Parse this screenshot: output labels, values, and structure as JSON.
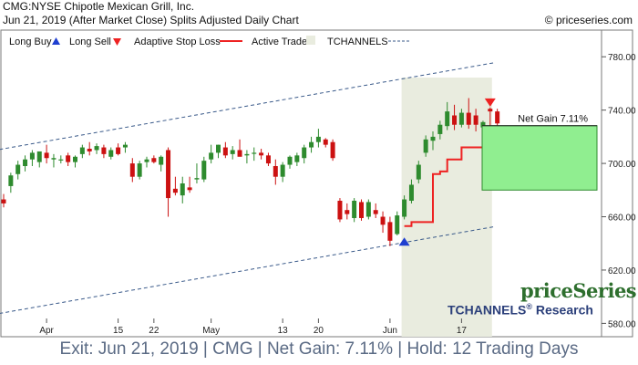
{
  "header": {
    "line1": "CMG:NYSE Chipotle Mexican Grill, Inc.",
    "line2": "Jun 21, 2019 (After Market Close)  Splits Adjusted Daily Chart",
    "copyright": "© priceseries.com"
  },
  "legend": {
    "long_buy": "Long Buy",
    "long_sell": "Long Sell",
    "adaptive_stop": "Adaptive Stop Loss",
    "active_trade": "Active Trade",
    "tchannels": "TCHANNELS"
  },
  "branding": {
    "name": "priceSeries",
    "research_prefix": "TCHANNELS",
    "research_mark": "®",
    "research_suffix": " Research"
  },
  "footer": "Exit: Jun 21, 2019 | CMG | Net Gain: 7.11% | Hold: 12 Trading Days",
  "colors": {
    "up": "#2e8b2e",
    "down": "#cc1111",
    "stop": "#ee2222",
    "channel": "#3a5a8a",
    "active_shade": "#e9ecdf",
    "gain_box": "#90ee90",
    "buy_arrow": "#1f3fd0",
    "sell_arrow": "#ee2222"
  },
  "chart_data": {
    "type": "candlestick",
    "ylim": [
      570,
      800
    ],
    "y_ticks": [
      580,
      620,
      660,
      700,
      740,
      780
    ],
    "y_tick_labels": [
      "580.00",
      "620.00",
      "660.00",
      "700.00",
      "740.00",
      "780.00"
    ],
    "x_tick_labels": [
      {
        "label": "Apr",
        "index": 6
      },
      {
        "label": "15",
        "index": 16
      },
      {
        "label": "22",
        "index": 21
      },
      {
        "label": "May",
        "index": 29
      },
      {
        "label": "13",
        "index": 39
      },
      {
        "label": "20",
        "index": 44
      },
      {
        "label": "Jun",
        "index": 54
      },
      {
        "label": "17",
        "index": 64
      }
    ],
    "candles": [
      {
        "o": 673,
        "h": 677,
        "l": 667,
        "c": 670
      },
      {
        "o": 683,
        "h": 693,
        "l": 678,
        "c": 691
      },
      {
        "o": 692,
        "h": 702,
        "l": 688,
        "c": 699
      },
      {
        "o": 698,
        "h": 706,
        "l": 694,
        "c": 703
      },
      {
        "o": 703,
        "h": 710,
        "l": 698,
        "c": 708
      },
      {
        "o": 701,
        "h": 707,
        "l": 697,
        "c": 709
      },
      {
        "o": 708,
        "h": 714,
        "l": 700,
        "c": 704
      },
      {
        "o": 703,
        "h": 707,
        "l": 697,
        "c": 704
      },
      {
        "o": 703,
        "h": 706,
        "l": 700,
        "c": 703
      },
      {
        "o": 706,
        "h": 708,
        "l": 698,
        "c": 701
      },
      {
        "o": 701,
        "h": 706,
        "l": 697,
        "c": 705
      },
      {
        "o": 707,
        "h": 714,
        "l": 704,
        "c": 712
      },
      {
        "o": 711,
        "h": 716,
        "l": 706,
        "c": 709
      },
      {
        "o": 710,
        "h": 715,
        "l": 707,
        "c": 713
      },
      {
        "o": 712,
        "h": 714,
        "l": 704,
        "c": 707
      },
      {
        "o": 705,
        "h": 712,
        "l": 703,
        "c": 710
      },
      {
        "o": 712,
        "h": 715,
        "l": 706,
        "c": 707
      },
      {
        "o": 712,
        "h": 716,
        "l": 708,
        "c": 714
      },
      {
        "o": 700,
        "h": 704,
        "l": 686,
        "c": 690
      },
      {
        "o": 690,
        "h": 702,
        "l": 688,
        "c": 700
      },
      {
        "o": 701,
        "h": 705,
        "l": 697,
        "c": 703
      },
      {
        "o": 704,
        "h": 706,
        "l": 700,
        "c": 701
      },
      {
        "o": 699,
        "h": 706,
        "l": 694,
        "c": 705
      },
      {
        "o": 710,
        "h": 712,
        "l": 660,
        "c": 674
      },
      {
        "o": 681,
        "h": 690,
        "l": 676,
        "c": 678
      },
      {
        "o": 676,
        "h": 690,
        "l": 670,
        "c": 685
      },
      {
        "o": 682,
        "h": 690,
        "l": 678,
        "c": 680
      },
      {
        "o": 688,
        "h": 700,
        "l": 685,
        "c": 689
      },
      {
        "o": 688,
        "h": 705,
        "l": 686,
        "c": 702
      },
      {
        "o": 703,
        "h": 714,
        "l": 700,
        "c": 708
      },
      {
        "o": 708,
        "h": 714,
        "l": 704,
        "c": 714
      },
      {
        "o": 712,
        "h": 716,
        "l": 704,
        "c": 706
      },
      {
        "o": 707,
        "h": 713,
        "l": 703,
        "c": 710
      },
      {
        "o": 710,
        "h": 718,
        "l": 706,
        "c": 705
      },
      {
        "o": 706,
        "h": 710,
        "l": 700,
        "c": 707
      },
      {
        "o": 708,
        "h": 712,
        "l": 702,
        "c": 708
      },
      {
        "o": 708,
        "h": 711,
        "l": 703,
        "c": 706
      },
      {
        "o": 706,
        "h": 708,
        "l": 698,
        "c": 700
      },
      {
        "o": 698,
        "h": 703,
        "l": 684,
        "c": 690
      },
      {
        "o": 690,
        "h": 701,
        "l": 686,
        "c": 699
      },
      {
        "o": 699,
        "h": 706,
        "l": 696,
        "c": 705
      },
      {
        "o": 701,
        "h": 708,
        "l": 698,
        "c": 706
      },
      {
        "o": 704,
        "h": 714,
        "l": 700,
        "c": 712
      },
      {
        "o": 712,
        "h": 720,
        "l": 708,
        "c": 716
      },
      {
        "o": 716,
        "h": 726,
        "l": 712,
        "c": 720
      },
      {
        "o": 718,
        "h": 719,
        "l": 712,
        "c": 714
      },
      {
        "o": 716,
        "h": 718,
        "l": 702,
        "c": 704
      },
      {
        "o": 672,
        "h": 674,
        "l": 656,
        "c": 658
      },
      {
        "o": 665,
        "h": 670,
        "l": 658,
        "c": 662
      },
      {
        "o": 659,
        "h": 674,
        "l": 656,
        "c": 672
      },
      {
        "o": 671,
        "h": 673,
        "l": 657,
        "c": 659
      },
      {
        "o": 660,
        "h": 673,
        "l": 658,
        "c": 671
      },
      {
        "o": 665,
        "h": 670,
        "l": 659,
        "c": 662
      },
      {
        "o": 660,
        "h": 664,
        "l": 648,
        "c": 654
      },
      {
        "o": 656,
        "h": 660,
        "l": 638,
        "c": 642
      },
      {
        "o": 647,
        "h": 664,
        "l": 646,
        "c": 661
      },
      {
        "o": 660,
        "h": 676,
        "l": 658,
        "c": 673
      },
      {
        "o": 672,
        "h": 688,
        "l": 670,
        "c": 684
      },
      {
        "o": 688,
        "h": 702,
        "l": 685,
        "c": 699
      },
      {
        "o": 708,
        "h": 721,
        "l": 705,
        "c": 718
      },
      {
        "o": 717,
        "h": 724,
        "l": 710,
        "c": 720
      },
      {
        "o": 722,
        "h": 732,
        "l": 718,
        "c": 729
      },
      {
        "o": 728,
        "h": 746,
        "l": 725,
        "c": 739
      },
      {
        "o": 736,
        "h": 744,
        "l": 725,
        "c": 729
      },
      {
        "o": 729,
        "h": 741,
        "l": 727,
        "c": 738
      },
      {
        "o": 738,
        "h": 749,
        "l": 726,
        "c": 729
      },
      {
        "o": 736,
        "h": 741,
        "l": 724,
        "c": 729
      },
      {
        "o": 727,
        "h": 732,
        "l": 722,
        "c": 731
      },
      {
        "o": 741,
        "h": 742,
        "l": 726,
        "c": 739
      },
      {
        "o": 739,
        "h": 741,
        "l": 728,
        "c": 730
      }
    ],
    "adaptive_stop_loss": [
      {
        "index": 56,
        "value": 653
      },
      {
        "index": 57,
        "value": 656
      },
      {
        "index": 58,
        "value": 656
      },
      {
        "index": 59,
        "value": 656
      },
      {
        "index": 60,
        "value": 692
      },
      {
        "index": 61,
        "value": 694
      },
      {
        "index": 62,
        "value": 703
      },
      {
        "index": 63,
        "value": 703
      },
      {
        "index": 64,
        "value": 712
      },
      {
        "index": 65,
        "value": 712
      },
      {
        "index": 66,
        "value": 712
      },
      {
        "index": 67,
        "value": 712
      },
      {
        "index": 68,
        "value": 712
      }
    ],
    "channel_upper": [
      {
        "index": 0,
        "value": 711
      },
      {
        "index": 68,
        "value": 775
      }
    ],
    "channel_lower": [
      {
        "index": 0,
        "value": 588
      },
      {
        "index": 68,
        "value": 652
      }
    ],
    "active_trade": {
      "start_index": 56,
      "end_index": 68
    },
    "long_buy": {
      "index": 56,
      "value": 641
    },
    "long_sell": {
      "index": 68,
      "value": 746
    },
    "net_gain": {
      "label": "Net Gain 7.11%",
      "entry": 680,
      "exit": 728.3
    }
  }
}
